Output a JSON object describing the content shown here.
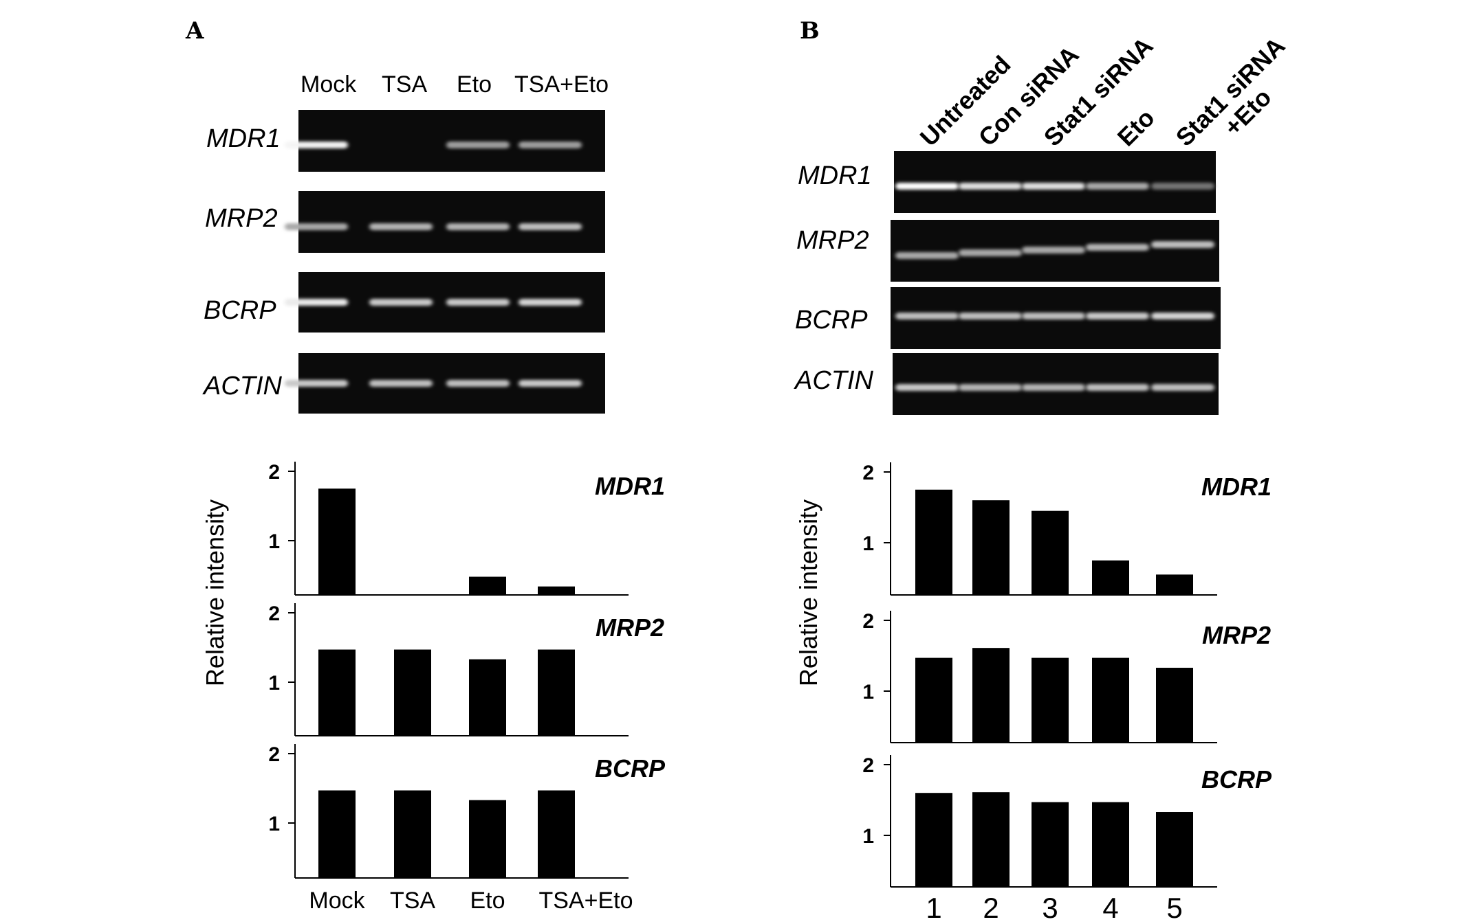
{
  "panel_a": {
    "letter": "A",
    "lanes": [
      "Mock",
      "TSA",
      "Eto",
      "TSA+Eto"
    ],
    "gel_genes": [
      "MDR1",
      "MRP2",
      "BCRP",
      "ACTIN"
    ],
    "ylabel": "Relative intensity",
    "charts": [
      {
        "gene": "MDR1",
        "values": [
          1.75,
          0.2,
          0.48,
          0.34
        ],
        "yticks": [
          "2",
          "1"
        ]
      },
      {
        "gene": "MRP2",
        "values": [
          1.47,
          1.47,
          1.33,
          1.47
        ],
        "yticks": [
          "2",
          "1"
        ]
      },
      {
        "gene": "BCRP",
        "values": [
          1.47,
          1.47,
          1.33,
          1.47
        ],
        "yticks": [
          "2",
          "1"
        ]
      }
    ],
    "xcategories": [
      "Mock",
      "TSA",
      "Eto",
      "TSA+Eto"
    ]
  },
  "panel_b": {
    "letter": "B",
    "lanes": [
      "Untreated",
      "Con siRNA",
      "Stat1 siRNA",
      "Eto",
      "Stat1 siRNA",
      "+Eto"
    ],
    "gel_genes": [
      "MDR1",
      "MRP2",
      "BCRP",
      "ACTIN"
    ],
    "ylabel": "Relative intensity",
    "charts": [
      {
        "gene": "MDR1",
        "values": [
          1.75,
          1.6,
          1.45,
          0.75,
          0.55
        ],
        "yticks": [
          "2",
          "1"
        ]
      },
      {
        "gene": "MRP2",
        "values": [
          1.47,
          1.61,
          1.47,
          1.47,
          1.33
        ],
        "yticks": [
          "2",
          "1"
        ]
      },
      {
        "gene": "BCRP",
        "values": [
          1.6,
          1.61,
          1.47,
          1.47,
          1.33
        ],
        "yticks": [
          "2",
          "1"
        ]
      }
    ],
    "xcategories": [
      "1",
      "2",
      "3",
      "4",
      "5"
    ]
  },
  "gel_band_intensity": {
    "a_MDR1": [
      0.95,
      0.0,
      0.55,
      0.55
    ],
    "a_MRP2": [
      0.6,
      0.65,
      0.65,
      0.7
    ],
    "a_BCRP": [
      0.9,
      0.75,
      0.75,
      0.8
    ],
    "a_ACTIN": [
      0.75,
      0.7,
      0.7,
      0.75
    ],
    "b_MDR1": [
      1.0,
      0.85,
      0.85,
      0.6,
      0.35
    ],
    "b_MRP2": [
      0.6,
      0.6,
      0.6,
      0.65,
      0.7
    ],
    "b_BCRP": [
      0.7,
      0.7,
      0.7,
      0.75,
      0.8
    ],
    "b_ACTIN": [
      0.75,
      0.65,
      0.65,
      0.7,
      0.7
    ]
  },
  "chart_data": [
    {
      "type": "bar",
      "panel": "A",
      "ylabel": "Relative intensity",
      "categories": [
        "Mock",
        "TSA",
        "Eto",
        "TSA+Eto"
      ],
      "series": [
        {
          "name": "MDR1",
          "values": [
            1.75,
            0.2,
            0.48,
            0.34
          ]
        },
        {
          "name": "MRP2",
          "values": [
            1.47,
            1.47,
            1.33,
            1.47
          ]
        },
        {
          "name": "BCRP",
          "values": [
            1.47,
            1.47,
            1.33,
            1.47
          ]
        }
      ],
      "yticks": [
        1,
        2
      ]
    },
    {
      "type": "bar",
      "panel": "B",
      "ylabel": "Relative intensity",
      "categories": [
        "1",
        "2",
        "3",
        "4",
        "5"
      ],
      "series": [
        {
          "name": "MDR1",
          "values": [
            1.75,
            1.6,
            1.45,
            0.75,
            0.55
          ]
        },
        {
          "name": "MRP2",
          "values": [
            1.47,
            1.61,
            1.47,
            1.47,
            1.33
          ]
        },
        {
          "name": "BCRP",
          "values": [
            1.6,
            1.61,
            1.47,
            1.47,
            1.33
          ]
        }
      ],
      "yticks": [
        1,
        2
      ]
    }
  ]
}
